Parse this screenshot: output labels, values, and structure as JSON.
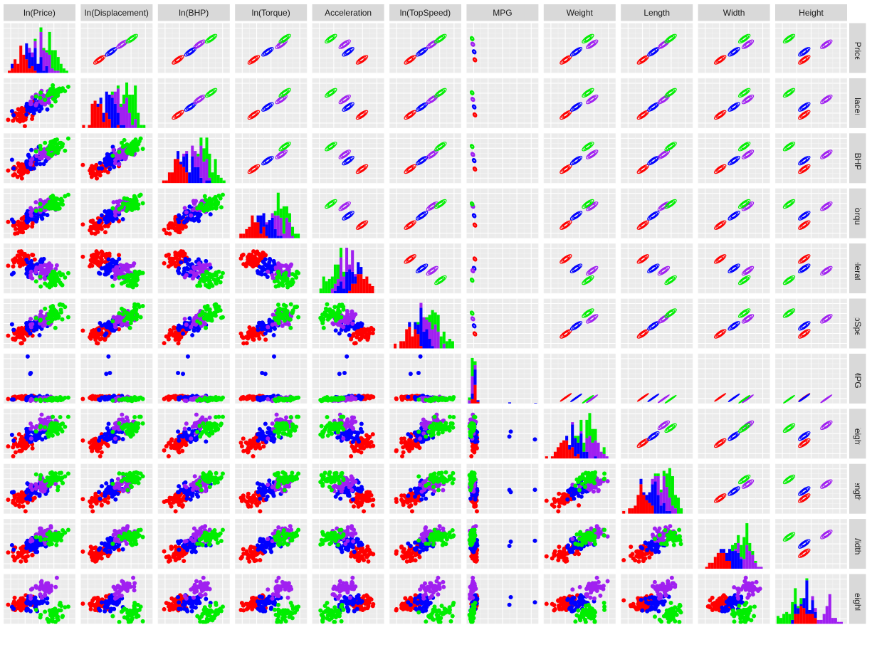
{
  "colors": {
    "panel_bg": "#ebebeb",
    "grid_major": "#ffffff",
    "grid_minor": "#f5f5f5",
    "strip_bg": "#d9d9d9",
    "group_colors": [
      "#ff0000",
      "#0000ff",
      "#a020f0",
      "#00ee00"
    ]
  },
  "chart_data": {
    "type": "scatter-matrix",
    "description_layers": {
      "lower_triangle": "scatter",
      "diagonal": "stacked-histogram",
      "upper_triangle": "density-contour"
    },
    "variables": [
      "ln(Price)",
      "ln(Displacement)",
      "ln(BHP)",
      "ln(Torque)",
      "Acceleration",
      "ln(TopSpeed)",
      "MPG",
      "Weight",
      "Length",
      "Width",
      "Height"
    ],
    "right_strip_labels": [
      "ln(Price)",
      "ln(Displacement)",
      "ln(BHP)",
      "ln(Torque)",
      "Acceleration",
      "ln(TopSpeed)",
      "MPG",
      "Weight",
      "Length",
      "Width",
      "Height"
    ],
    "groups": [
      {
        "color": "#ff0000"
      },
      {
        "color": "#0000ff"
      },
      {
        "color": "#a020f0"
      },
      {
        "color": "#00ee00"
      }
    ],
    "group_means": {
      "ln(Price)": [
        0.25,
        0.42,
        0.58,
        0.7
      ],
      "ln(Displacement)": [
        0.25,
        0.42,
        0.58,
        0.72
      ],
      "ln(BHP)": [
        0.27,
        0.45,
        0.58,
        0.75
      ],
      "ln(Torque)": [
        0.25,
        0.45,
        0.65,
        0.7
      ],
      "Acceleration": [
        0.7,
        0.5,
        0.45,
        0.25
      ],
      "ln(TopSpeed)": [
        0.28,
        0.45,
        0.6,
        0.72
      ],
      "MPG": [
        0.1,
        0.09,
        0.07,
        0.06
      ],
      "Weight": [
        0.3,
        0.45,
        0.68,
        0.62
      ],
      "Length": [
        0.3,
        0.45,
        0.6,
        0.7
      ],
      "Width": [
        0.3,
        0.5,
        0.7,
        0.65
      ],
      "Height": [
        0.4,
        0.4,
        0.72,
        0.18
      ]
    },
    "group_sd": 0.09,
    "n_per_group": 45,
    "axis_range": [
      0,
      1
    ],
    "grid": true,
    "legend": "none"
  }
}
